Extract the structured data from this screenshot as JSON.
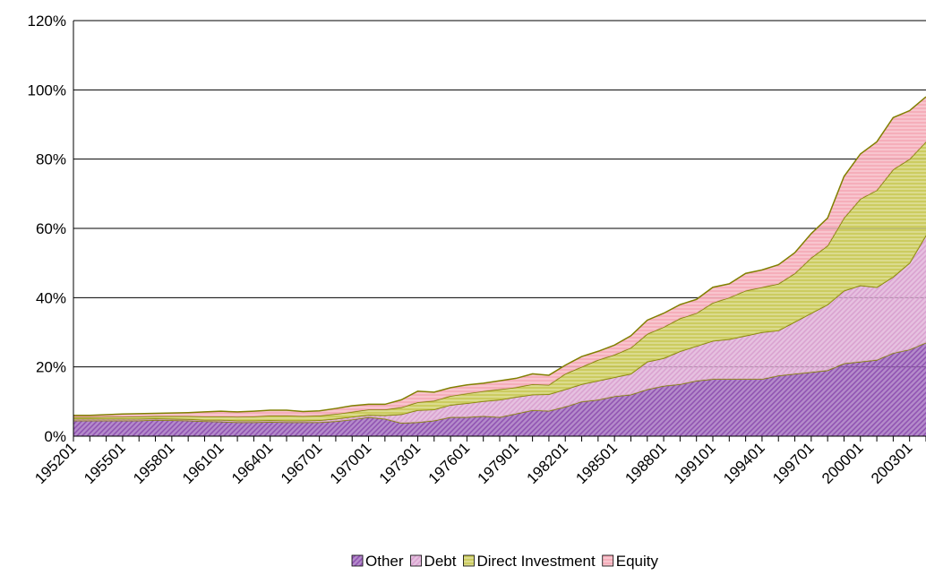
{
  "chart_data": {
    "type": "stacked_area",
    "categories": [
      "195201",
      null,
      null,
      "195501",
      null,
      null,
      "195801",
      null,
      null,
      "196101",
      null,
      null,
      "196401",
      null,
      null,
      "196701",
      null,
      null,
      "197001",
      null,
      null,
      "197301",
      null,
      null,
      "197601",
      null,
      null,
      "197901",
      null,
      null,
      "198201",
      null,
      null,
      "198501",
      null,
      null,
      "198801",
      null,
      null,
      "199101",
      null,
      null,
      "199401",
      null,
      null,
      "199701",
      null,
      null,
      "200001",
      null,
      null,
      "200301",
      null
    ],
    "series": [
      {
        "name": "Other",
        "color": "#8e4fb0",
        "values": [
          4.5,
          4.5,
          4.5,
          4.5,
          4.5,
          4.7,
          4.6,
          4.5,
          4.3,
          4.2,
          4.0,
          4.0,
          4.1,
          4.0,
          4.0,
          4.0,
          4.3,
          4.8,
          5.5,
          5.0,
          3.8,
          4.0,
          4.5,
          5.5,
          5.5,
          5.8,
          5.5,
          6.5,
          7.5,
          7.3,
          8.5,
          10,
          10.5,
          11.5,
          12,
          13.5,
          14.5,
          15,
          16,
          16.5,
          16.5,
          16.5,
          16.5,
          17.5,
          18,
          18.5,
          19,
          21,
          21.5,
          22,
          24,
          25,
          27
        ]
      },
      {
        "name": "Debt",
        "color": "#d9a0cf",
        "values": [
          0.5,
          0.5,
          0.5,
          0.5,
          0.5,
          0.4,
          0.4,
          0.4,
          0.4,
          0.5,
          0.5,
          0.5,
          0.5,
          0.5,
          0.5,
          0.6,
          0.7,
          0.8,
          0.6,
          1.0,
          2.5,
          3.5,
          3.2,
          3.5,
          4.0,
          4.3,
          5.0,
          4.8,
          4.5,
          4.8,
          5.0,
          5,
          5.5,
          5.5,
          6,
          8,
          8,
          9.5,
          10,
          11,
          11.5,
          12.5,
          13.5,
          13,
          15,
          17,
          19,
          21,
          22,
          21,
          22,
          25,
          31
        ]
      },
      {
        "name": "Direct Investment",
        "color": "#c8c850",
        "values": [
          0.5,
          0.5,
          0.6,
          0.6,
          0.7,
          0.7,
          0.8,
          0.9,
          1.0,
          1.0,
          1.1,
          1.2,
          1.3,
          1.4,
          1.3,
          1.3,
          1.4,
          1.4,
          1.6,
          1.7,
          2.0,
          2.3,
          2.5,
          2.6,
          2.8,
          2.9,
          3.0,
          2.8,
          3.0,
          2.7,
          4.5,
          5,
          6,
          6.5,
          7.5,
          8,
          9,
          9.5,
          9.5,
          11,
          12,
          13,
          13,
          13.5,
          14,
          16,
          17,
          21,
          25,
          28,
          31,
          30,
          27
        ]
      },
      {
        "name": "Equity",
        "color": "#f4a6b4",
        "values": [
          0.5,
          0.5,
          0.6,
          0.8,
          0.8,
          0.8,
          0.9,
          1.0,
          1.3,
          1.5,
          1.4,
          1.5,
          1.6,
          1.6,
          1.3,
          1.4,
          1.6,
          1.8,
          1.5,
          1.5,
          2.2,
          3.2,
          2.5,
          2.4,
          2.5,
          2.3,
          2.5,
          2.6,
          3.0,
          2.8,
          2.5,
          3,
          2.5,
          2.8,
          3.5,
          4,
          4,
          4,
          4,
          4.5,
          4,
          5,
          5,
          5.5,
          6,
          7,
          8,
          12,
          13,
          14,
          15,
          14,
          13
        ]
      }
    ],
    "ylim": [
      0,
      120
    ],
    "yticks": [
      {
        "value": 0,
        "label": "0%"
      },
      {
        "value": 20,
        "label": "20%"
      },
      {
        "value": 40,
        "label": "40%"
      },
      {
        "value": 60,
        "label": "60%"
      },
      {
        "value": 80,
        "label": "80%"
      },
      {
        "value": 100,
        "label": "100%"
      },
      {
        "value": 120,
        "label": "120%"
      }
    ],
    "grid": true,
    "outline_color": "#808000",
    "legend": "bottom"
  }
}
